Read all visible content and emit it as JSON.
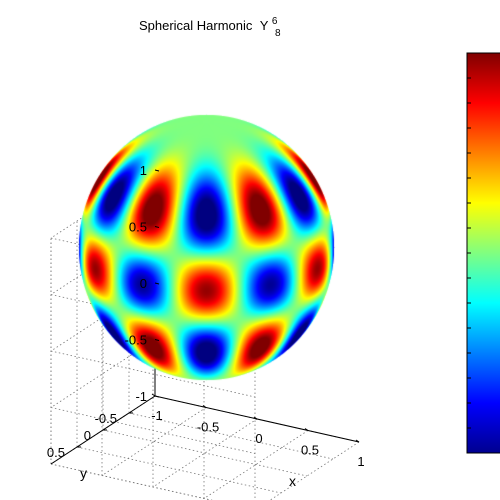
{
  "chart_data": {
    "type": "surface",
    "title": "Spherical Harmonic",
    "title_symbol": "Y",
    "degree_l": "8",
    "order_m": "6",
    "xlabel": "x",
    "ylabel": "y",
    "zlabel": "",
    "x_ticks": [
      "-1",
      "-0.5",
      "0",
      "0.5",
      "1"
    ],
    "y_ticks": [
      "-0.5",
      "0",
      "0.5"
    ],
    "z_ticks": [
      "-1",
      "-0.5",
      "0",
      "0.5",
      "1"
    ],
    "xlim": [
      -1,
      1
    ],
    "ylim": [
      -1,
      1
    ],
    "zlim": [
      -1,
      1
    ],
    "grid": true,
    "colormap": "jet",
    "colorbar": true,
    "surface": "unit sphere colored by Re(Y_8^6)",
    "l": 8,
    "m": 6
  }
}
